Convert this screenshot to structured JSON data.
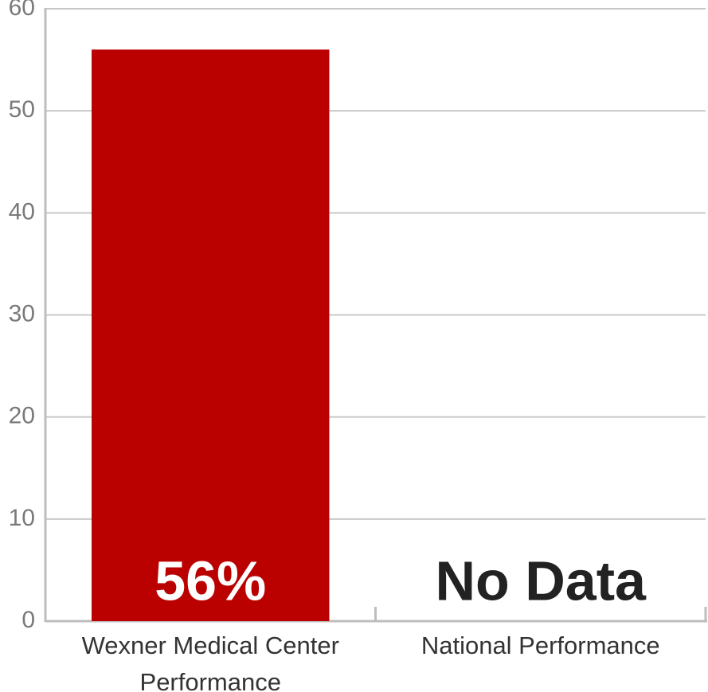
{
  "chart_data": {
    "type": "bar",
    "categories": [
      "Wexner Medical Center Performance",
      "National Performance"
    ],
    "values": [
      56,
      null
    ],
    "value_labels": [
      "56%",
      "No Data"
    ],
    "color": "#bb0000",
    "ylim": [
      0,
      60
    ],
    "yticks": [
      0,
      10,
      20,
      30,
      40,
      50,
      60
    ],
    "grid": true
  }
}
